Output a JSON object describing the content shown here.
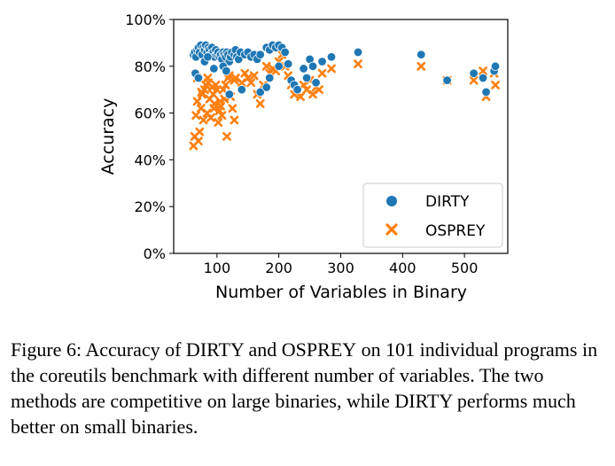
{
  "chart_data": {
    "type": "scatter",
    "xlabel": "Number of Variables in Binary",
    "ylabel": "Accuracy",
    "xlim": [
      30,
      570
    ],
    "ylim": [
      0,
      100
    ],
    "x_ticks": [
      "100",
      "200",
      "300",
      "400",
      "500"
    ],
    "x_tick_values": [
      100,
      200,
      300,
      400,
      500
    ],
    "y_ticks": [
      "0%",
      "20%",
      "40%",
      "60%",
      "80%",
      "100%"
    ],
    "y_tick_values": [
      0,
      20,
      40,
      60,
      80,
      100
    ],
    "legend_position": "bottom-right",
    "grid": false,
    "series": [
      {
        "name": "DIRTY",
        "marker": "circle",
        "color": "#1f77b4",
        "points": [
          [
            62,
            85
          ],
          [
            64,
            86
          ],
          [
            66,
            84
          ],
          [
            68,
            87
          ],
          [
            70,
            88
          ],
          [
            72,
            86
          ],
          [
            74,
            89
          ],
          [
            76,
            85
          ],
          [
            78,
            88
          ],
          [
            80,
            87
          ],
          [
            82,
            89
          ],
          [
            84,
            86
          ],
          [
            86,
            88
          ],
          [
            88,
            87
          ],
          [
            90,
            85
          ],
          [
            92,
            88
          ],
          [
            94,
            86
          ],
          [
            96,
            84
          ],
          [
            98,
            87
          ],
          [
            100,
            85
          ],
          [
            102,
            86
          ],
          [
            104,
            84
          ],
          [
            106,
            85
          ],
          [
            108,
            83
          ],
          [
            110,
            86
          ],
          [
            112,
            85
          ],
          [
            114,
            84
          ],
          [
            116,
            86
          ],
          [
            118,
            85
          ],
          [
            120,
            82
          ],
          [
            122,
            84
          ],
          [
            124,
            86
          ],
          [
            128,
            85
          ],
          [
            130,
            87
          ],
          [
            132,
            84
          ],
          [
            135,
            83
          ],
          [
            138,
            86
          ],
          [
            145,
            85
          ],
          [
            150,
            86
          ],
          [
            155,
            84
          ],
          [
            160,
            85
          ],
          [
            165,
            83
          ],
          [
            170,
            85
          ],
          [
            180,
            88
          ],
          [
            185,
            87
          ],
          [
            190,
            89
          ],
          [
            195,
            88
          ],
          [
            200,
            89
          ],
          [
            205,
            88
          ],
          [
            210,
            86
          ],
          [
            215,
            81
          ],
          [
            65,
            77
          ],
          [
            70,
            75
          ],
          [
            80,
            82
          ],
          [
            85,
            84
          ],
          [
            95,
            79
          ],
          [
            110,
            80
          ],
          [
            115,
            78
          ],
          [
            120,
            68
          ],
          [
            140,
            70
          ],
          [
            170,
            69
          ],
          [
            180,
            71
          ],
          [
            185,
            75
          ],
          [
            200,
            80
          ],
          [
            220,
            74
          ],
          [
            225,
            72
          ],
          [
            230,
            70
          ],
          [
            240,
            79
          ],
          [
            245,
            75
          ],
          [
            250,
            83
          ],
          [
            255,
            80
          ],
          [
            260,
            73
          ],
          [
            270,
            82
          ],
          [
            285,
            84
          ],
          [
            328,
            86
          ],
          [
            430,
            85
          ],
          [
            472,
            74
          ],
          [
            515,
            77
          ],
          [
            530,
            75
          ],
          [
            535,
            69
          ],
          [
            548,
            78
          ],
          [
            550,
            80
          ]
        ]
      },
      {
        "name": "OSPREY",
        "marker": "x",
        "color": "#ff7f0e",
        "points": [
          [
            62,
            46
          ],
          [
            64,
            50
          ],
          [
            66,
            59
          ],
          [
            68,
            65
          ],
          [
            70,
            48
          ],
          [
            72,
            52
          ],
          [
            74,
            62
          ],
          [
            76,
            68
          ],
          [
            78,
            57
          ],
          [
            80,
            70
          ],
          [
            82,
            72
          ],
          [
            84,
            60
          ],
          [
            86,
            73
          ],
          [
            88,
            66
          ],
          [
            90,
            58
          ],
          [
            92,
            71
          ],
          [
            94,
            68
          ],
          [
            96,
            64
          ],
          [
            98,
            72
          ],
          [
            100,
            70
          ],
          [
            102,
            56
          ],
          [
            104,
            61
          ],
          [
            106,
            63
          ],
          [
            108,
            59
          ],
          [
            110,
            70
          ],
          [
            112,
            66
          ],
          [
            114,
            72
          ],
          [
            116,
            50
          ],
          [
            118,
            75
          ],
          [
            120,
            76
          ],
          [
            122,
            67
          ],
          [
            125,
            62
          ],
          [
            128,
            74
          ],
          [
            130,
            75
          ],
          [
            135,
            84
          ],
          [
            140,
            73
          ],
          [
            145,
            77
          ],
          [
            150,
            75
          ],
          [
            155,
            73
          ],
          [
            160,
            76
          ],
          [
            165,
            68
          ],
          [
            170,
            64
          ],
          [
            175,
            72
          ],
          [
            180,
            80
          ],
          [
            185,
            77
          ],
          [
            190,
            79
          ],
          [
            195,
            78
          ],
          [
            200,
            82
          ],
          [
            205,
            85
          ],
          [
            210,
            80
          ],
          [
            220,
            72
          ],
          [
            225,
            68
          ],
          [
            230,
            69
          ],
          [
            235,
            67
          ],
          [
            240,
            72
          ],
          [
            245,
            70
          ],
          [
            250,
            74
          ],
          [
            255,
            68
          ],
          [
            260,
            71
          ],
          [
            265,
            70
          ],
          [
            270,
            77
          ],
          [
            285,
            79
          ],
          [
            328,
            81
          ],
          [
            430,
            80
          ],
          [
            472,
            74
          ],
          [
            515,
            74
          ],
          [
            530,
            78
          ],
          [
            535,
            67
          ],
          [
            548,
            77
          ],
          [
            550,
            72
          ],
          [
            68,
            75
          ],
          [
            75,
            69
          ],
          [
            85,
            75
          ],
          [
            95,
            62
          ],
          [
            105,
            65
          ],
          [
            128,
            57
          ],
          [
            215,
            76
          ]
        ]
      }
    ]
  },
  "caption": {
    "prefix": "Figure 6: Accuracy of DIRTY and O",
    "small_caps": "SPREY",
    "suffix": " on 101 individual programs in the coreutils benchmark with different number of variables. The two methods are competitive on large binaries, while DIRTY performs much better on small binaries."
  }
}
